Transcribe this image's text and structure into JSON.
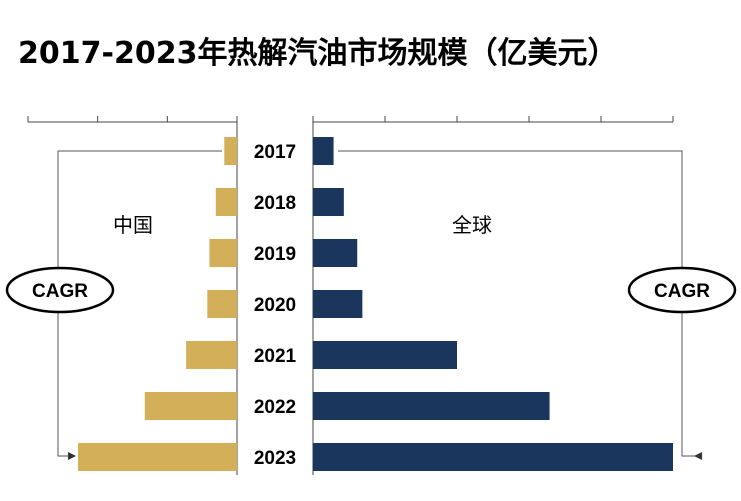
{
  "title": "2017-2023年热解汽油市场规模（亿美元）",
  "colors": {
    "china": "#D4AF5A",
    "global": "#1B365D",
    "line": "#555555"
  },
  "chart_data": {
    "type": "bar",
    "orientation": "horizontal-butterfly",
    "categories": [
      "2017",
      "2018",
      "2019",
      "2020",
      "2021",
      "2022",
      "2023"
    ],
    "series": [
      {
        "name": "中国",
        "values": [
          1.2,
          2.0,
          2.6,
          2.8,
          4.8,
          8.7,
          15.0
        ]
      },
      {
        "name": "全球",
        "values": [
          2.0,
          3.0,
          4.3,
          4.8,
          14.0,
          23.0,
          35.0
        ]
      }
    ],
    "left_axis_ticks": 3,
    "right_axis_ticks": 5,
    "annotations": {
      "left": "CAGR",
      "right": "CAGR"
    }
  }
}
